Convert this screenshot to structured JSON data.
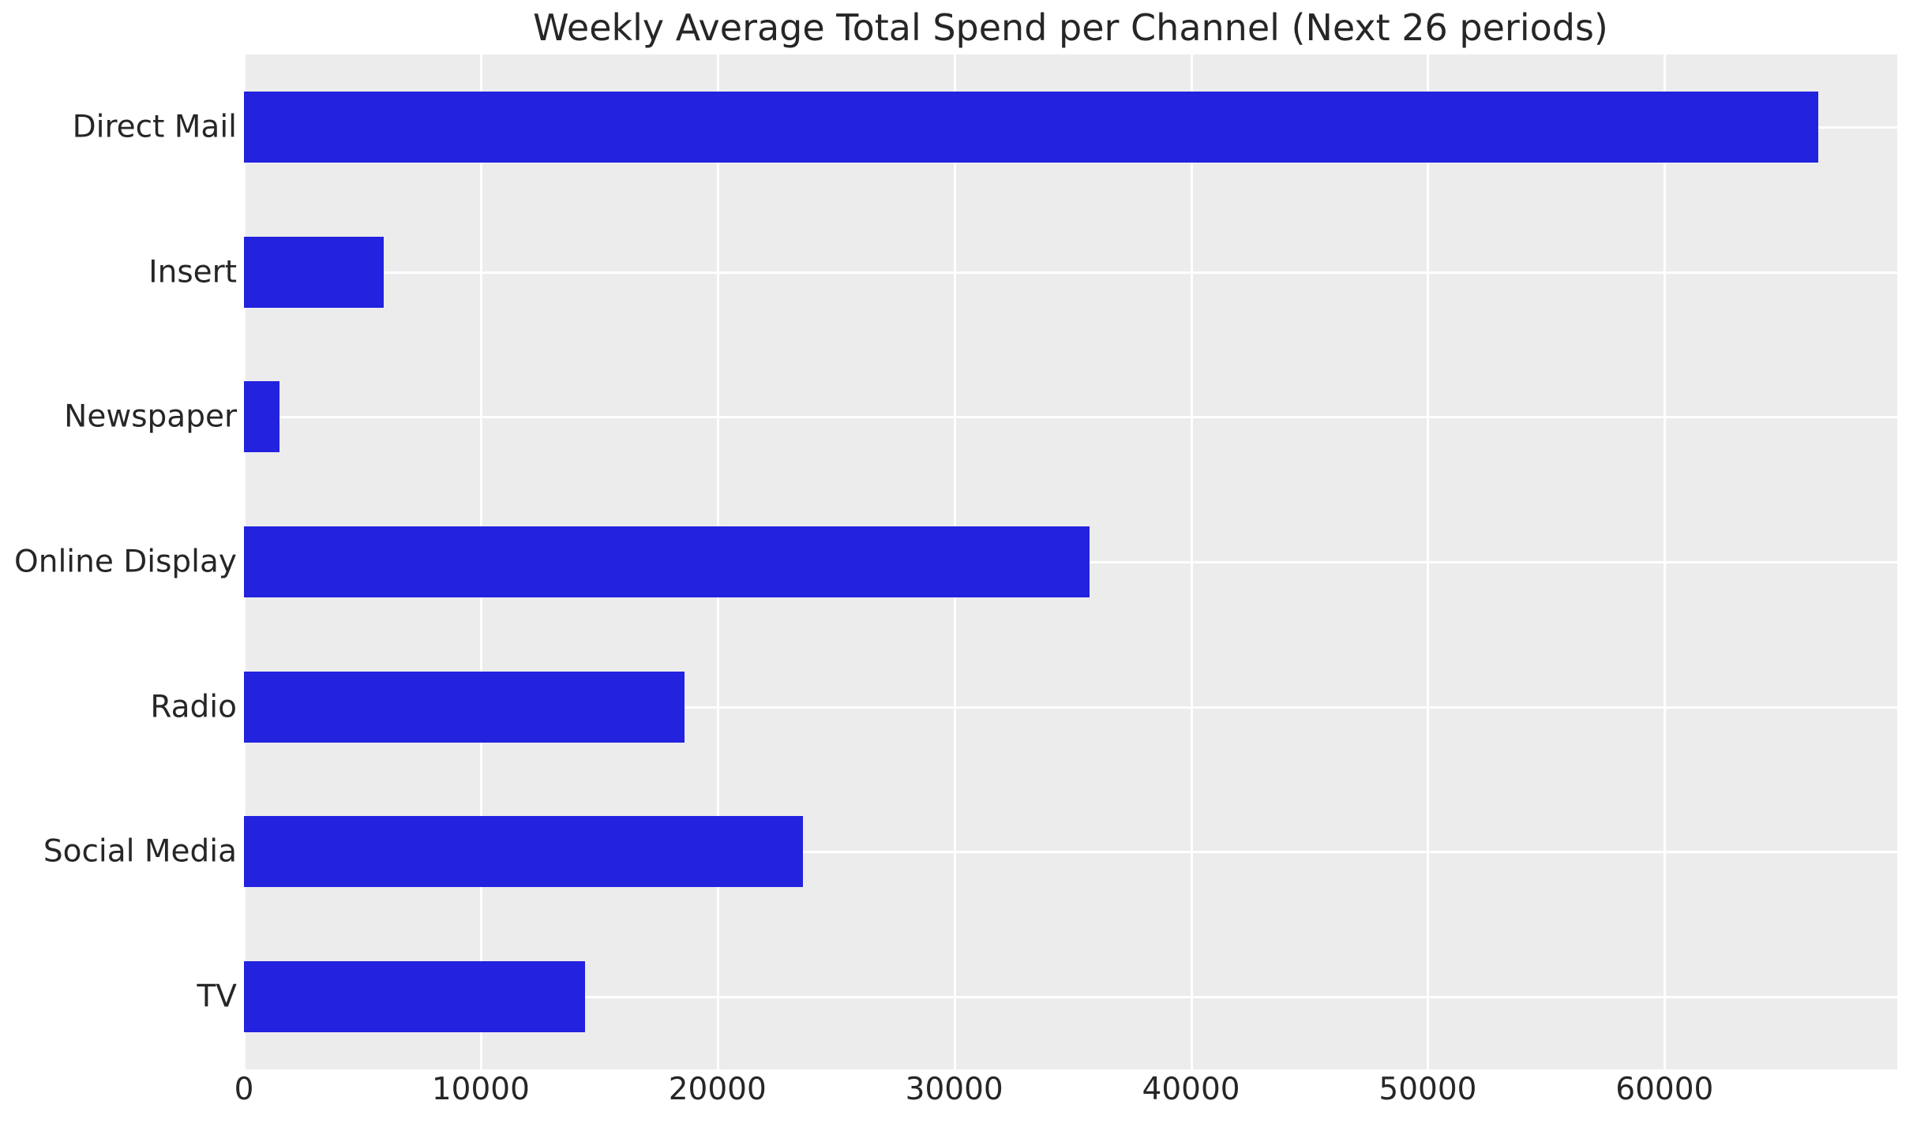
{
  "chart_data": {
    "type": "bar",
    "orientation": "horizontal",
    "title": "Weekly Average Total Spend per Channel (Next 26 periods)",
    "categories": [
      "Direct Mail",
      "Insert",
      "Newspaper",
      "Online Display",
      "Radio",
      "Social Media",
      "TV"
    ],
    "values": [
      66500,
      5900,
      1500,
      35700,
      18600,
      23600,
      14400
    ],
    "xlabel": "",
    "ylabel": "",
    "x_ticks": [
      0,
      10000,
      20000,
      30000,
      40000,
      50000,
      60000
    ],
    "x_tick_labels": [
      "0",
      "10000",
      "20000",
      "30000",
      "40000",
      "50000",
      "60000"
    ],
    "xlim": [
      0,
      69825
    ],
    "grid": true,
    "legend": false,
    "bar_color": "#2222df",
    "plot_bg": "#ececec",
    "grid_color": "#ffffff",
    "text_color": "#262626"
  }
}
